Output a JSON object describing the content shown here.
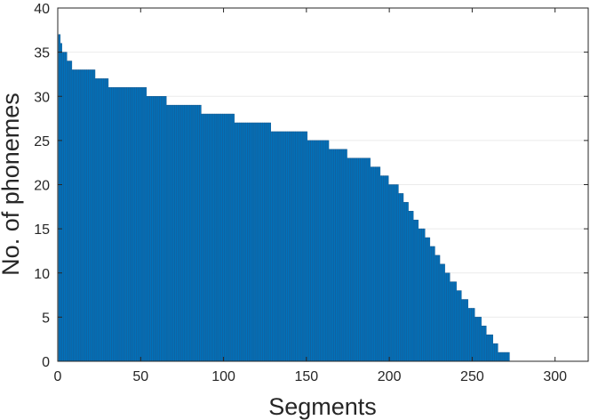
{
  "chart_data": {
    "type": "bar",
    "title": "",
    "xlabel": "Segments",
    "ylabel": "No. of phonemes",
    "xlim": [
      0,
      320
    ],
    "ylim": [
      0,
      40
    ],
    "xticks": [
      0,
      50,
      100,
      150,
      200,
      250,
      300
    ],
    "yticks": [
      0,
      5,
      10,
      15,
      20,
      25,
      30,
      35,
      40
    ],
    "grid": "horizontal",
    "bar_color": "#0072bd",
    "bar_edge_color": "#1a5a8e",
    "runs": [
      {
        "from": 1,
        "to": 1,
        "value": 37
      },
      {
        "from": 2,
        "to": 2,
        "value": 36
      },
      {
        "from": 3,
        "to": 5,
        "value": 35
      },
      {
        "from": 6,
        "to": 8,
        "value": 34
      },
      {
        "from": 9,
        "to": 22,
        "value": 33
      },
      {
        "from": 23,
        "to": 30,
        "value": 32
      },
      {
        "from": 31,
        "to": 53,
        "value": 31
      },
      {
        "from": 54,
        "to": 65,
        "value": 30
      },
      {
        "from": 66,
        "to": 86,
        "value": 29
      },
      {
        "from": 87,
        "to": 106,
        "value": 28
      },
      {
        "from": 107,
        "to": 128,
        "value": 27
      },
      {
        "from": 129,
        "to": 150,
        "value": 26
      },
      {
        "from": 151,
        "to": 163,
        "value": 25
      },
      {
        "from": 164,
        "to": 174,
        "value": 24
      },
      {
        "from": 175,
        "to": 188,
        "value": 23
      },
      {
        "from": 189,
        "to": 194,
        "value": 22
      },
      {
        "from": 195,
        "to": 199,
        "value": 21
      },
      {
        "from": 200,
        "to": 205,
        "value": 20
      },
      {
        "from": 206,
        "to": 208,
        "value": 19
      },
      {
        "from": 209,
        "to": 211,
        "value": 18
      },
      {
        "from": 212,
        "to": 214,
        "value": 17
      },
      {
        "from": 215,
        "to": 217,
        "value": 16
      },
      {
        "from": 218,
        "to": 221,
        "value": 15
      },
      {
        "from": 222,
        "to": 224,
        "value": 14
      },
      {
        "from": 225,
        "to": 227,
        "value": 13
      },
      {
        "from": 228,
        "to": 230,
        "value": 12
      },
      {
        "from": 231,
        "to": 233,
        "value": 11
      },
      {
        "from": 234,
        "to": 236,
        "value": 10
      },
      {
        "from": 237,
        "to": 240,
        "value": 9
      },
      {
        "from": 241,
        "to": 243,
        "value": 8
      },
      {
        "from": 244,
        "to": 247,
        "value": 7
      },
      {
        "from": 248,
        "to": 251,
        "value": 6
      },
      {
        "from": 252,
        "to": 255,
        "value": 5
      },
      {
        "from": 256,
        "to": 258,
        "value": 4
      },
      {
        "from": 259,
        "to": 262,
        "value": 3
      },
      {
        "from": 263,
        "to": 265,
        "value": 2
      },
      {
        "from": 266,
        "to": 272,
        "value": 1
      }
    ]
  }
}
